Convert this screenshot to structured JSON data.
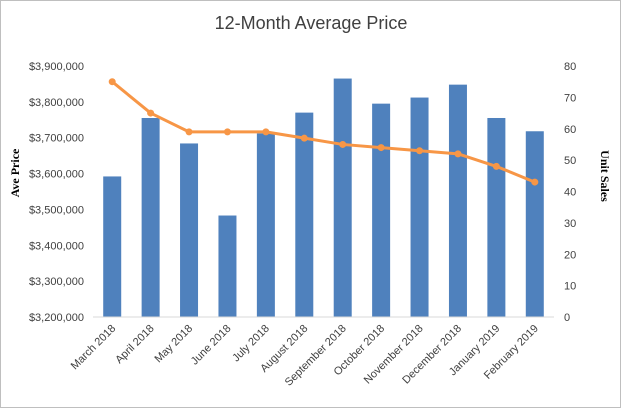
{
  "chart_data": {
    "type": "bar",
    "title": "12-Month Average Price",
    "categories": [
      "March 2018",
      "April 2018",
      "May 2018",
      "June 2018",
      "July 2018",
      "August 2018",
      "September 2018",
      "October 2018",
      "November 2018",
      "December 2018",
      "January 2019",
      "February 2019"
    ],
    "series": [
      {
        "name": "",
        "type": "bar",
        "axis": "left",
        "color": "#4f81bd",
        "values": [
          3592000,
          3755000,
          3684000,
          3483000,
          3712000,
          3770000,
          3865000,
          3795000,
          3812000,
          3848000,
          3755000,
          3718000
        ]
      },
      {
        "name": "",
        "type": "line",
        "axis": "right",
        "color": "#f79646",
        "values": [
          75,
          65,
          59,
          59,
          59,
          57,
          55,
          54,
          53,
          52,
          48,
          43
        ]
      }
    ],
    "ylabel": "Ave Price",
    "y2label": "Unit Sales",
    "ylim": [
      3200000,
      3900000
    ],
    "y2lim": [
      0,
      80
    ],
    "yticks": [
      "$3,200,000",
      "$3,300,000",
      "$3,400,000",
      "$3,500,000",
      "$3,600,000",
      "$3,700,000",
      "$3,800,000",
      "$3,900,000"
    ],
    "y2ticks": [
      "0",
      "10",
      "20",
      "30",
      "40",
      "50",
      "60",
      "70",
      "80"
    ],
    "grid": false,
    "legend": "none"
  }
}
